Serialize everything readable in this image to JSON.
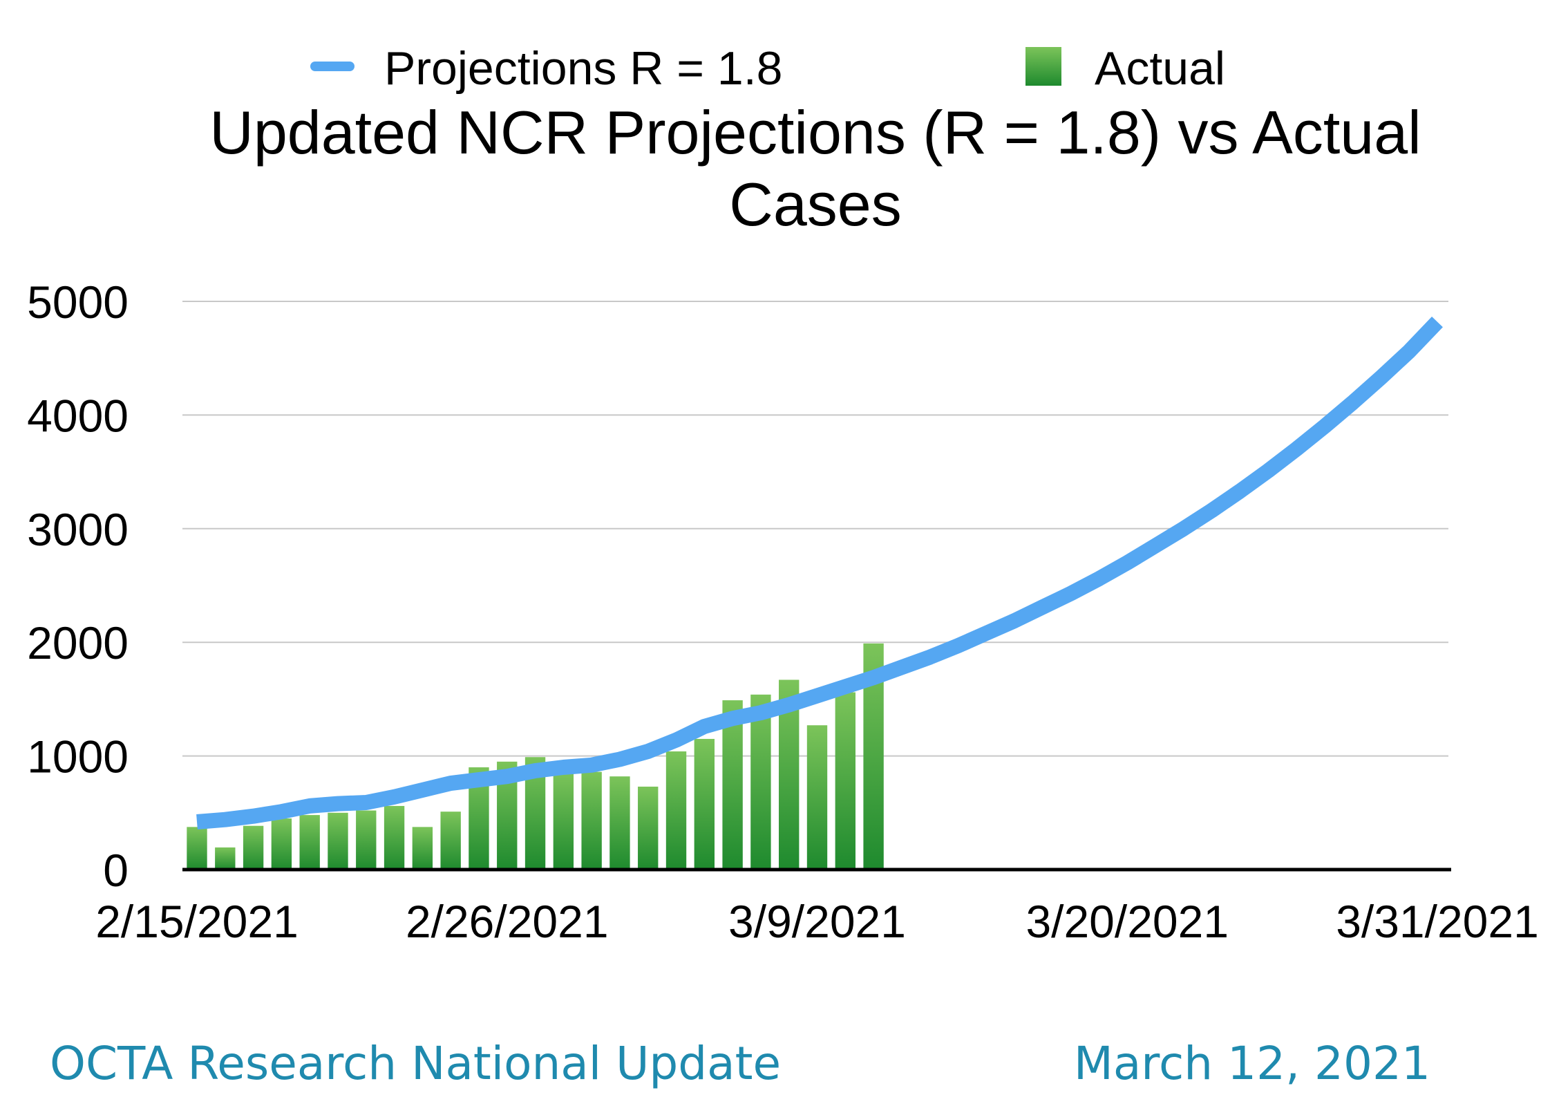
{
  "chart_data": {
    "type": "bar+line",
    "title_line1": "Updated NCR Projections (R = 1.8) vs Actual",
    "title_line2": "Cases",
    "legend": [
      {
        "name": "Projections R = 1.8",
        "color": "#55a7f2",
        "kind": "line"
      },
      {
        "name": "Actual",
        "color": "#3aa23a",
        "kind": "bar"
      }
    ],
    "xlabel": "",
    "ylabel": "",
    "ylim": [
      0,
      5000
    ],
    "y_ticks": [
      0,
      1000,
      2000,
      3000,
      4000,
      5000
    ],
    "x_range": [
      "2/15/2021",
      "3/31/2021"
    ],
    "x_ticks": [
      "2/15/2021",
      "2/26/2021",
      "3/9/2021",
      "3/20/2021",
      "3/31/2021"
    ],
    "grid": true,
    "series": [
      {
        "name": "Actual",
        "type": "bar",
        "color_top": "#7cc45a",
        "color_bottom": "#1e8a2e",
        "x": [
          "2/15/2021",
          "2/16/2021",
          "2/17/2021",
          "2/18/2021",
          "2/19/2021",
          "2/20/2021",
          "2/21/2021",
          "2/22/2021",
          "2/23/2021",
          "2/24/2021",
          "2/25/2021",
          "2/26/2021",
          "2/27/2021",
          "2/28/2021",
          "3/1/2021",
          "3/2/2021",
          "3/3/2021",
          "3/4/2021",
          "3/5/2021",
          "3/6/2021",
          "3/7/2021",
          "3/8/2021",
          "3/9/2021",
          "3/10/2021",
          "3/11/2021",
          "3/12/2021"
        ],
        "values": [
          375,
          195,
          385,
          450,
          480,
          500,
          520,
          560,
          375,
          510,
          900,
          950,
          990,
          850,
          860,
          820,
          730,
          1040,
          1150,
          1490,
          1540,
          1670,
          1270,
          1560,
          1990,
          0
        ]
      },
      {
        "name": "Projections R = 1.8",
        "type": "line",
        "color": "#55a7f2",
        "x": [
          "2/15/2021",
          "2/16/2021",
          "2/17/2021",
          "2/18/2021",
          "2/19/2021",
          "2/20/2021",
          "2/21/2021",
          "2/22/2021",
          "2/23/2021",
          "2/24/2021",
          "2/25/2021",
          "2/26/2021",
          "2/27/2021",
          "2/28/2021",
          "3/1/2021",
          "3/2/2021",
          "3/3/2021",
          "3/4/2021",
          "3/5/2021",
          "3/6/2021",
          "3/7/2021",
          "3/8/2021",
          "3/9/2021",
          "3/10/2021",
          "3/11/2021",
          "3/12/2021",
          "3/13/2021",
          "3/14/2021",
          "3/15/2021",
          "3/16/2021",
          "3/17/2021",
          "3/18/2021",
          "3/19/2021",
          "3/20/2021",
          "3/21/2021",
          "3/22/2021",
          "3/23/2021",
          "3/24/2021",
          "3/25/2021",
          "3/26/2021",
          "3/27/2021",
          "3/28/2021",
          "3/29/2021",
          "3/30/2021",
          "3/31/2021"
        ],
        "values": [
          420,
          440,
          470,
          510,
          560,
          580,
          590,
          640,
          700,
          760,
          790,
          820,
          870,
          900,
          920,
          970,
          1040,
          1140,
          1260,
          1330,
          1380,
          1450,
          1530,
          1610,
          1690,
          1780,
          1870,
          1970,
          2080,
          2190,
          2310,
          2430,
          2560,
          2700,
          2850,
          3000,
          3160,
          3330,
          3510,
          3700,
          3900,
          4110,
          4330,
          4560,
          4820
        ]
      }
    ]
  },
  "footer": {
    "left": "OCTA Research National Update",
    "right": "March 12, 2021"
  }
}
